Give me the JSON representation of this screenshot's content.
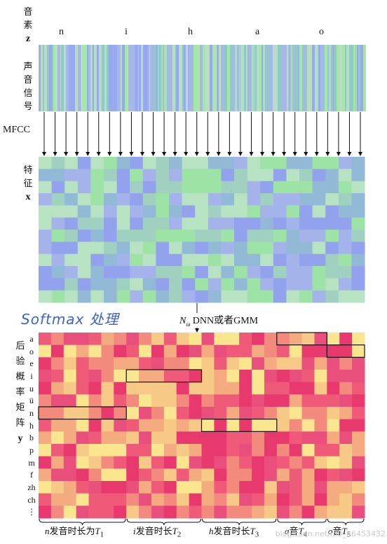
{
  "left_labels": {
    "phoneme": {
      "chars": [
        "音",
        "素"
      ],
      "symbol": "z"
    },
    "signal": {
      "chars": [
        "声",
        "音",
        "信",
        "号"
      ]
    },
    "mfcc": "MFCC",
    "feature": {
      "chars": [
        "特",
        "征"
      ],
      "symbol": "x"
    },
    "posterior": {
      "chars": [
        "后",
        "验",
        "概",
        "率",
        "矩",
        "阵"
      ],
      "symbol": "y"
    }
  },
  "phonemes": [
    "n",
    "i",
    "h",
    "a",
    "o"
  ],
  "model_label": "N",
  "model_sub": "ω",
  "model_text": "DNN或者GMM",
  "handwritten": "Softmax 处理",
  "row_labels": [
    "a",
    "o",
    "e",
    "i",
    "u",
    "ü",
    "n",
    "h",
    "b",
    "p",
    "m",
    "f",
    "zh",
    "ch",
    "⋮"
  ],
  "brackets": [
    {
      "italic": "n",
      "text": "发音时长为",
      "T": "T",
      "sub": "1"
    },
    {
      "italic": "i",
      "text": "发音时长",
      "T": "T",
      "sub": "2"
    },
    {
      "italic": "h",
      "text": "发音时长",
      "T": "T",
      "sub": "3"
    },
    {
      "italic": "a",
      "text": "音",
      "T": "T",
      "sub": "4"
    },
    {
      "italic": "o",
      "text": "音",
      "T": "T",
      "sub": "5"
    }
  ],
  "watermark": "blog.csdn.net/m0_46453432",
  "colors": {
    "signal": [
      "#a3e8a6",
      "#98a9ef",
      "#b9ddc4",
      "#8fc9c8",
      "#a6b8e6"
    ],
    "feature": [
      "#9ee3a6",
      "#a4b4ea",
      "#a0d0c0",
      "#93a2ec",
      "#b8e3c3",
      "#92b9d6"
    ],
    "posterior": [
      "#e8396f",
      "#f28a7d",
      "#f7c986",
      "#fbe690",
      "#ee5a78",
      "#f4ab80",
      "#e94f7c"
    ]
  }
}
